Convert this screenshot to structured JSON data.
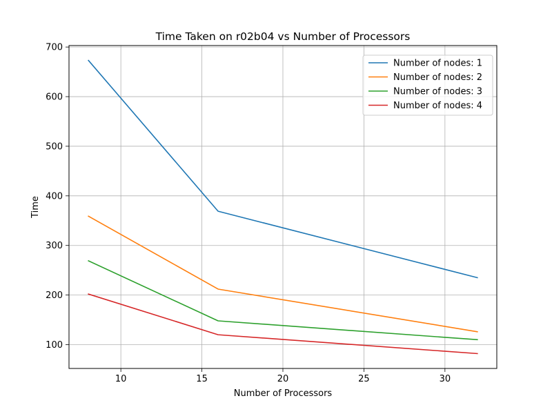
{
  "chart_data": {
    "type": "line",
    "title": "Time Taken on r02b04 vs Number of Processors",
    "xlabel": "Number of Processors",
    "ylabel": "Time",
    "x": [
      8,
      16,
      32
    ],
    "series": [
      {
        "name": "Number of nodes: 1",
        "values": [
          673,
          369,
          235
        ],
        "color": "#1f77b4"
      },
      {
        "name": "Number of nodes: 2",
        "values": [
          359,
          212,
          126
        ],
        "color": "#ff7f0e"
      },
      {
        "name": "Number of nodes: 3",
        "values": [
          269,
          148,
          110
        ],
        "color": "#2ca02c"
      },
      {
        "name": "Number of nodes: 4",
        "values": [
          202,
          120,
          82
        ],
        "color": "#d62728"
      }
    ],
    "xlim": [
      6.8,
      33.2
    ],
    "ylim": [
      52,
      703
    ],
    "xticks": [
      10,
      15,
      20,
      25,
      30
    ],
    "yticks": [
      100,
      200,
      300,
      400,
      500,
      600,
      700
    ],
    "grid": true,
    "legend_position": "top-right"
  }
}
